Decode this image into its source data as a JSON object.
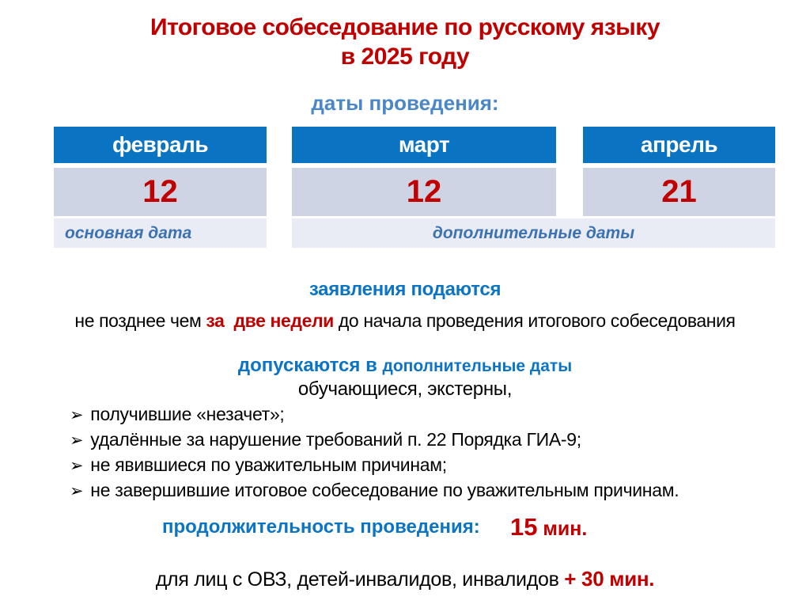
{
  "slide": {
    "title_line1": "Итоговое собеседование по русскому языку",
    "title_line2": "в 2025 году",
    "dates_heading": "даты проведения:",
    "calendar": {
      "columns": [
        {
          "month": "февраль",
          "day": "12"
        },
        {
          "month": "март",
          "day": "12"
        },
        {
          "month": "апрель",
          "day": "21"
        }
      ],
      "primary_label": "основная дата",
      "additional_label": "дополнительные даты"
    },
    "applications": {
      "heading": "заявления подаются",
      "text_before": "не позднее чем ",
      "text_highlight": "за  две недели",
      "text_after": " до начала проведения итогового собеседования"
    },
    "admission": {
      "heading_part1": "допускаются в ",
      "heading_part2": "дополнительные даты",
      "subline": "обучающиеся, экстерны,",
      "bullet_char": "➢",
      "items": [
        "получившие «незачет»;",
        "удалённые за нарушение требований п. 22 Порядка ГИА-9;",
        "не явившиеся по уважительным причинам;",
        "не завершившие итоговое собеседование по уважительным причинам."
      ]
    },
    "duration": {
      "heading": "продолжительность проведения:",
      "value_number": "15",
      "value_unit": " мин.",
      "footer_text": "для лиц с ОВЗ, детей-инвалидов, инвалидов ",
      "footer_value": "+ 30 мин."
    },
    "colors": {
      "accent_red": "#C00000",
      "accent_blue": "#0B74C4",
      "header_blue": "#0A73C2",
      "dates_heading_blue": "#4A86C8",
      "label_blue": "#3C72B0",
      "cell_gray": "#CED4E3",
      "cell_light": "#E9ECF4"
    }
  }
}
